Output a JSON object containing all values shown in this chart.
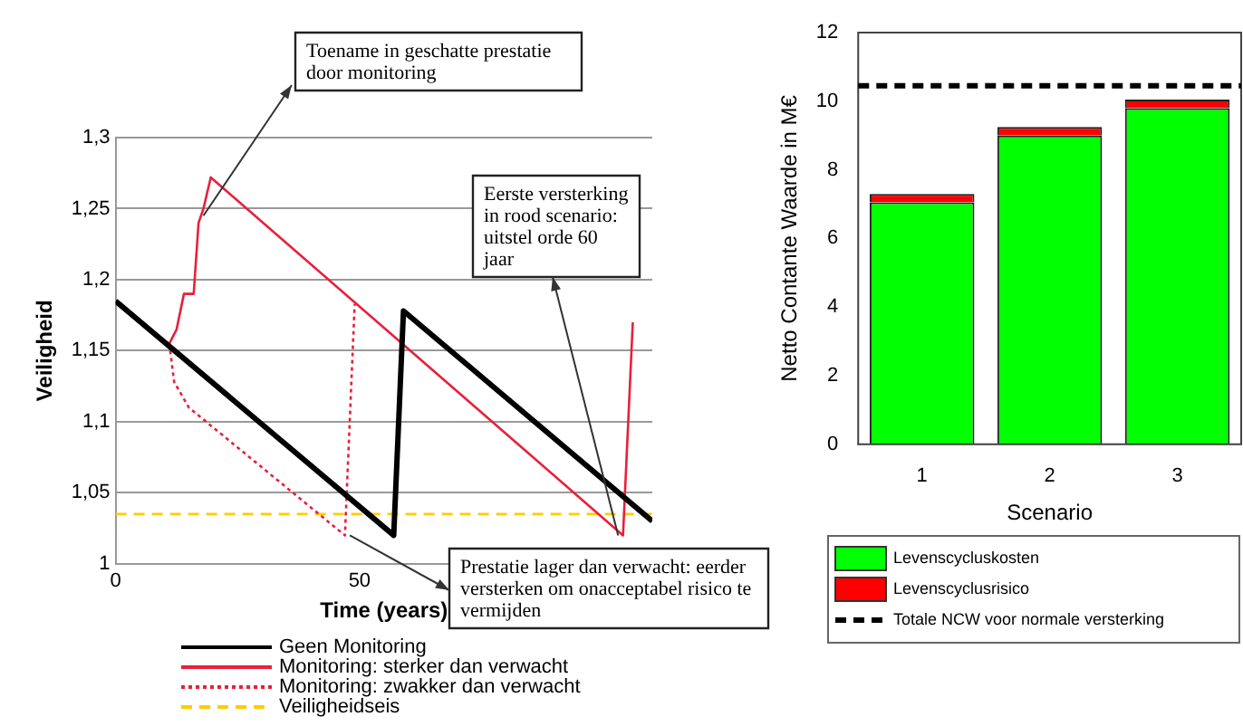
{
  "chart_data": [
    {
      "type": "line",
      "xlabel": "Time (years)",
      "ylabel": "Veiligheid",
      "xlim": [
        0,
        110
      ],
      "xticks": [
        0,
        50
      ],
      "ylim": [
        1,
        1.3
      ],
      "yticks": [
        1,
        {
          "value": 1.05,
          "label": "1,05"
        },
        {
          "value": 1.1,
          "label": "1,1"
        },
        {
          "value": 1.15,
          "label": "1,15"
        },
        {
          "value": 1.2,
          "label": "1,2"
        },
        {
          "value": 1.25,
          "label": "1,25"
        },
        {
          "value": 1.3,
          "label": "1,3"
        }
      ],
      "grid": "y",
      "legend": "bottom",
      "marker": "none",
      "series": [
        {
          "name": "Geen Monitoring",
          "color": "#000000",
          "line_style": "solid",
          "x": [
            0,
            57,
            59,
            110
          ],
          "values": [
            1.185,
            1.02,
            1.178,
            1.03
          ]
        },
        {
          "name": "Monitoring: sterker dan verwacht",
          "color": "#e8203a",
          "line_style": "solid",
          "x": [
            11,
            12.5,
            14,
            16,
            17,
            18,
            19.5,
            104,
            106
          ],
          "values": [
            1.155,
            1.165,
            1.19,
            1.19,
            1.24,
            1.25,
            1.272,
            1.02,
            1.17
          ]
        },
        {
          "name": "Monitoring: zwakker dan verwacht",
          "color": "#e8203a",
          "line_style": "dotted",
          "x": [
            11,
            12,
            15,
            47,
            49
          ],
          "values": [
            1.155,
            1.128,
            1.11,
            1.02,
            1.183
          ]
        },
        {
          "name": "Veiligheidseis",
          "color": "#ffcc00",
          "line_style": "dashed",
          "x": [
            0,
            110
          ],
          "values": [
            1.035,
            1.035
          ]
        }
      ],
      "annotations": [
        {
          "text": "Toename in geschatte prestatie door monitoring",
          "x": 18,
          "y": 1.245
        },
        {
          "text": "Eerste versterking in rood scenario: uitstel orde 60 jaar",
          "x": 103,
          "y": 1.02
        },
        {
          "text": "Prestatie lager dan verwacht: eerder versterken om onacceptabel risico te vermijden",
          "x": 48,
          "y": 1.02
        }
      ]
    },
    {
      "type": "bar",
      "stacked": true,
      "categories": [
        "1",
        "2",
        "3"
      ],
      "xlabel": "Scenario",
      "ylabel": "Netto Contante Waarde in M€",
      "ylim": [
        0,
        12
      ],
      "yticks": [
        0,
        2,
        4,
        6,
        8,
        10,
        12
      ],
      "grid": false,
      "legend": "bottom",
      "series": [
        {
          "name": "Levenscycluskosten",
          "color": "#00ff00",
          "values": [
            7.05,
            9.0,
            9.8
          ]
        },
        {
          "name": "Levenscyclusrisico",
          "color": "#ff0000",
          "values": [
            0.25,
            0.25,
            0.25
          ]
        }
      ],
      "ref_lines": [
        {
          "axis": "y",
          "value": 10.45,
          "label": "Totale NCW voor normale versterking",
          "color": "#000000",
          "line_style": "dashed"
        }
      ]
    }
  ]
}
